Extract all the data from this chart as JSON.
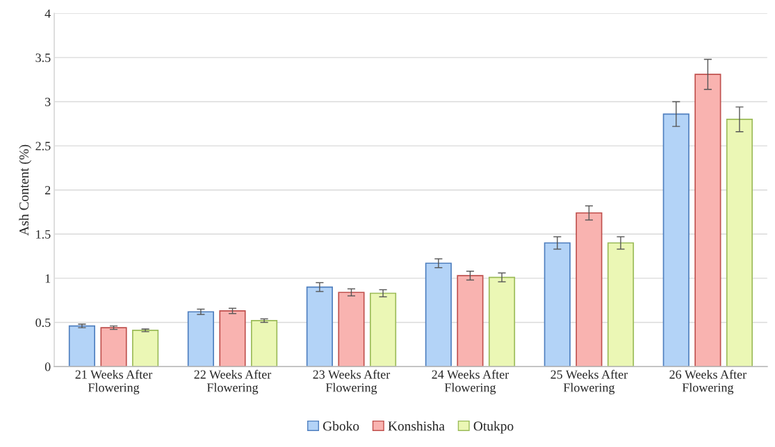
{
  "chart_data": {
    "type": "bar",
    "ylabel": "Ash Content (%)",
    "categories": [
      "21 Weeks After\nFlowering",
      "22 Weeks After\nFlowering",
      "23 Weeks After\nFlowering",
      "24 Weeks After\nFlowering",
      "25 Weeks After\nFlowering",
      "26 Weeks After\nFlowering"
    ],
    "series": [
      {
        "name": "Gboko",
        "color": "#b3d3f7",
        "values": [
          0.46,
          0.62,
          0.9,
          1.17,
          1.4,
          2.86
        ],
        "errors": [
          0.02,
          0.03,
          0.05,
          0.05,
          0.07,
          0.14
        ]
      },
      {
        "name": "Konshisha",
        "color": "#f9b3b0",
        "values": [
          0.44,
          0.63,
          0.84,
          1.03,
          1.74,
          3.31
        ],
        "errors": [
          0.02,
          0.03,
          0.04,
          0.05,
          0.08,
          0.17
        ]
      },
      {
        "name": "Otukpo",
        "color": "#ebf7b5",
        "values": [
          0.41,
          0.52,
          0.83,
          1.01,
          1.4,
          2.8
        ],
        "errors": [
          0.015,
          0.02,
          0.04,
          0.05,
          0.07,
          0.14
        ]
      }
    ],
    "ylim": [
      0,
      4
    ],
    "yticks": [
      0,
      0.5,
      1,
      1.5,
      2,
      2.5,
      3,
      3.5,
      4
    ],
    "grid": "y",
    "legend": "bottom"
  }
}
